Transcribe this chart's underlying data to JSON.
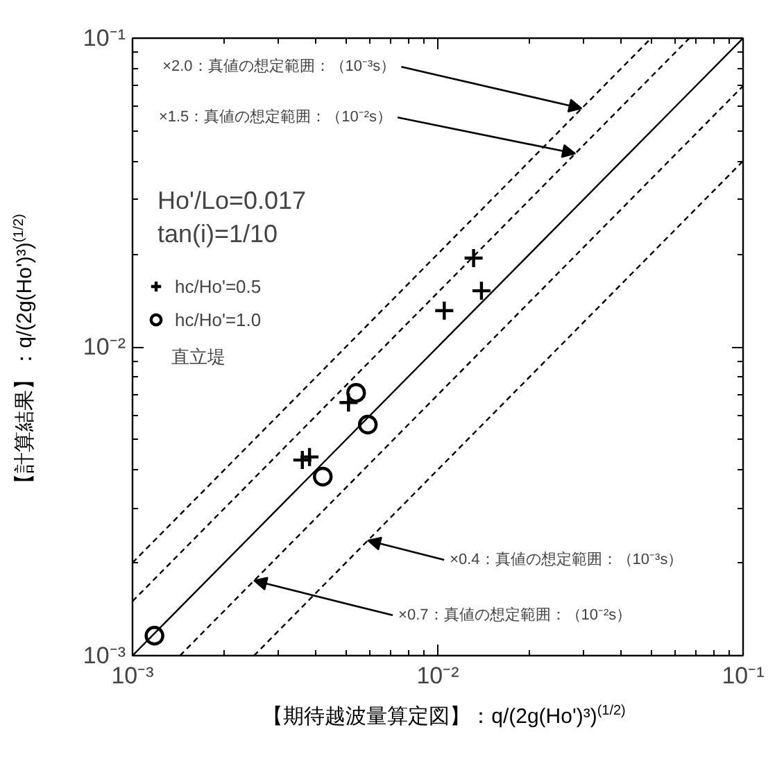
{
  "chart_data": {
    "type": "scatter",
    "xlabel": "【期待越波量算定図】：q/(2g(Ho')³)$^{(1/2)}$",
    "ylabel": "【計算結果】：q/(2g(Ho')³)$^{(1/2)}$",
    "log": "xy",
    "grid": false,
    "legend": "left",
    "xlim": [
      0.001,
      0.1
    ],
    "ylim": [
      0.001,
      0.1
    ],
    "xticks": [
      {
        "value": 0.001,
        "label": "10⁻³"
      },
      {
        "value": 0.01,
        "label": "10⁻²"
      },
      {
        "value": 0.1,
        "label": "10⁻¹"
      }
    ],
    "yticks": [
      {
        "value": 0.001,
        "label": "10⁻³"
      },
      {
        "value": 0.01,
        "label": "10⁻²"
      },
      {
        "value": 0.1,
        "label": "10⁻¹"
      }
    ],
    "series": [
      {
        "name": "hc/Ho'=0.5",
        "type": "scatter",
        "marker": "cross",
        "color": "#000000",
        "x": [
          0.0131,
          0.0139,
          0.0105,
          0.0051,
          0.0036,
          0.0038
        ],
        "values": [
          0.0194,
          0.0152,
          0.0131,
          0.0066,
          0.0043,
          0.0044
        ]
      },
      {
        "name": "hc/Ho'=1.0",
        "type": "scatter",
        "marker": "circle",
        "color": "#000000",
        "x": [
          0.0054,
          0.0059,
          0.0042,
          0.00118
        ],
        "values": [
          0.0071,
          0.0056,
          0.0038,
          0.00116
        ]
      },
      {
        "type": "line",
        "line_style": "dashed",
        "color": "#000000",
        "x": [
          0.001,
          0.05
        ],
        "values": [
          0.002,
          0.1
        ]
      },
      {
        "type": "line",
        "line_style": "dashed",
        "color": "#000000",
        "x": [
          0.001,
          0.0667
        ],
        "values": [
          0.0015,
          0.1
        ]
      },
      {
        "type": "line",
        "line_style": "solid",
        "color": "#000000",
        "x": [
          0.001,
          0.1
        ],
        "values": [
          0.001,
          0.1
        ]
      },
      {
        "type": "line",
        "line_style": "dashed",
        "color": "#000000",
        "x": [
          0.00143,
          0.1
        ],
        "values": [
          0.001,
          0.07
        ]
      },
      {
        "type": "line",
        "line_style": "dashed",
        "color": "#000000",
        "x": [
          0.0025,
          0.1
        ],
        "values": [
          0.001,
          0.04
        ]
      }
    ],
    "annotations": [
      {
        "text": "×2.0：真値の想定範囲：（10⁻³s）",
        "x": 0.0296,
        "y": 0.0592
      },
      {
        "text": "×1.5：真値の想定範囲：（10⁻²s）",
        "x": 0.0282,
        "y": 0.0423
      },
      {
        "text": "×0.4：真値の想定範囲：（10⁻³s）",
        "x": 0.0059,
        "y": 0.00236
      },
      {
        "text": "×0.7：真値の想定範囲：（10⁻²s）",
        "x": 0.0025,
        "y": 0.00175
      },
      "Ho'/Lo=0.017",
      "tan(i)=1/10",
      "直立堤"
    ]
  }
}
